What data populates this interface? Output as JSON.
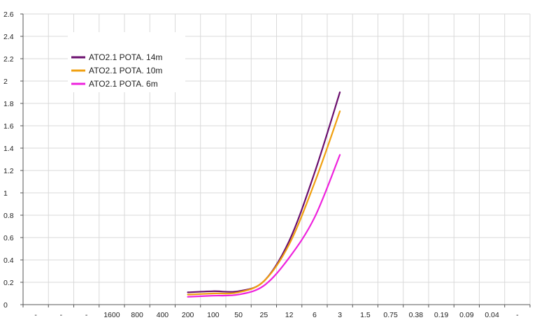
{
  "chart_data": {
    "type": "line",
    "categories": [
      "-",
      "-",
      "-",
      "1600",
      "800",
      "400",
      "200",
      "100",
      "50",
      "25",
      "12",
      "6",
      "3",
      "1.5",
      "0.75",
      "0.38",
      "0.19",
      "0.09",
      "0.04",
      "-"
    ],
    "ylim": [
      0,
      2.6
    ],
    "yticks": [
      "0",
      "0.2",
      "0.4",
      "0.6",
      "0.8",
      "1",
      "1.2",
      "1.4",
      "1.6",
      "1.8",
      "2",
      "2.2",
      "2.4",
      "2.6"
    ],
    "grid": true,
    "legend_position": "top-left",
    "series": [
      {
        "name": "ATO2.1 POTA. 14m",
        "color": "#6b0f6e",
        "values": [
          null,
          null,
          null,
          null,
          null,
          null,
          0.11,
          0.12,
          0.12,
          0.21,
          0.57,
          1.18,
          1.9,
          null,
          null,
          null,
          null,
          null,
          null,
          null
        ]
      },
      {
        "name": "ATO2.1 POTA. 10m",
        "color": "#f0a010",
        "values": [
          null,
          null,
          null,
          null,
          null,
          null,
          0.09,
          0.1,
          0.11,
          0.21,
          0.54,
          1.09,
          1.73,
          null,
          null,
          null,
          null,
          null,
          null,
          null
        ]
      },
      {
        "name": "ATO2.1 POTA. 6m",
        "color": "#ee22dd",
        "values": [
          null,
          null,
          null,
          null,
          null,
          null,
          0.07,
          0.08,
          0.09,
          0.17,
          0.42,
          0.78,
          1.34,
          null,
          null,
          null,
          null,
          null,
          null,
          null
        ]
      }
    ]
  }
}
